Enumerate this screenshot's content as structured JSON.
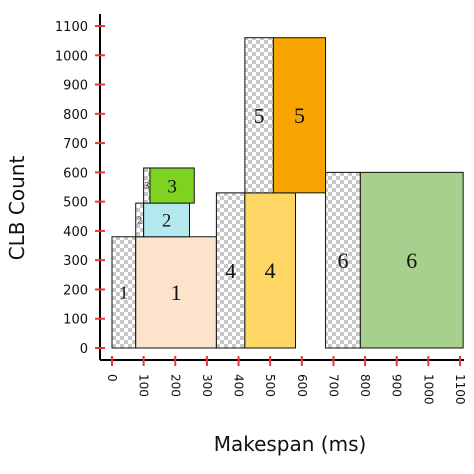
{
  "chart_data": {
    "type": "bar",
    "xlabel": "Makespan (ms)",
    "ylabel": "CLB Count",
    "xlim": [
      0,
      1100
    ],
    "ylim": [
      0,
      1100
    ],
    "x_ticks": [
      "0",
      "100",
      "200",
      "300",
      "400",
      "500",
      "600",
      "700",
      "800",
      "900",
      "1000",
      "1100"
    ],
    "y_ticks": [
      "0",
      "100",
      "200",
      "300",
      "400",
      "500",
      "600",
      "700",
      "800",
      "900",
      "1000",
      "1100"
    ],
    "grid": false,
    "tick_mark_color": "#e53935",
    "hatch_color": "#c8c8c8",
    "boxes": [
      {
        "label": "1",
        "pattern": "checkered",
        "x_start": 0,
        "x_end": 75,
        "y_start": 0,
        "y_end": 380
      },
      {
        "label": "1",
        "pattern": "solid",
        "color": "#fce4cc",
        "x_start": 75,
        "x_end": 330,
        "y_start": 0,
        "y_end": 380
      },
      {
        "label": "2",
        "pattern": "checkered",
        "x_start": 75,
        "x_end": 100,
        "y_start": 380,
        "y_end": 495
      },
      {
        "label": "2",
        "pattern": "solid",
        "color": "#b3e8ef",
        "x_start": 100,
        "x_end": 245,
        "y_start": 380,
        "y_end": 495
      },
      {
        "label": "3",
        "pattern": "checkered",
        "x_start": 100,
        "x_end": 120,
        "y_start": 495,
        "y_end": 615
      },
      {
        "label": "3",
        "pattern": "solid",
        "color": "#7ed321",
        "x_start": 120,
        "x_end": 260,
        "y_start": 495,
        "y_end": 615
      },
      {
        "label": "4",
        "pattern": "checkered",
        "x_start": 330,
        "x_end": 420,
        "y_start": 0,
        "y_end": 530
      },
      {
        "label": "4",
        "pattern": "solid",
        "color": "#fdd665",
        "x_start": 420,
        "x_end": 580,
        "y_start": 0,
        "y_end": 530
      },
      {
        "label": "5",
        "pattern": "checkered",
        "x_start": 420,
        "x_end": 510,
        "y_start": 530,
        "y_end": 1060
      },
      {
        "label": "5",
        "pattern": "solid",
        "color": "#f7a500",
        "x_start": 510,
        "x_end": 675,
        "y_start": 530,
        "y_end": 1060
      },
      {
        "label": "6",
        "pattern": "checkered",
        "x_start": 675,
        "x_end": 785,
        "y_start": 0,
        "y_end": 600
      },
      {
        "label": "6",
        "pattern": "solid",
        "color": "#a8d08d",
        "x_start": 785,
        "x_end": 1110,
        "y_start": 0,
        "y_end": 600
      }
    ]
  }
}
